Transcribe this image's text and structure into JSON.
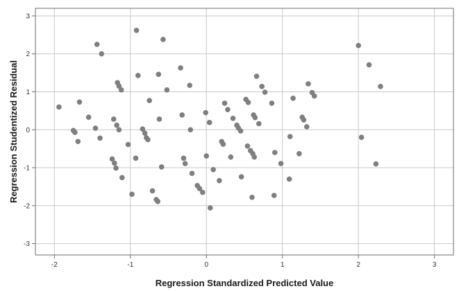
{
  "chart_data": {
    "type": "scatter",
    "title": "",
    "xlabel": "Regression Standardized Predicted Value",
    "ylabel": "Regression Studentized Residual",
    "xlim": [
      -2.25,
      3.25
    ],
    "ylim": [
      -3.3,
      3.2
    ],
    "xticks": [
      -2,
      -1,
      0,
      1,
      2,
      3
    ],
    "yticks": [
      -3,
      -2,
      -1,
      0,
      1,
      2,
      3
    ],
    "x_tick_labels": [
      "-2",
      "-1",
      "0",
      "1",
      "2",
      "3"
    ],
    "y_tick_labels": [
      "-3",
      "-2",
      "-1",
      "0",
      "1",
      "2",
      "3"
    ],
    "grid": true,
    "point_color": "#7f7f7f",
    "grid_color": "#c8c8c8",
    "points": [
      {
        "x": -1.94,
        "y": 0.6
      },
      {
        "x": -1.75,
        "y": -0.02
      },
      {
        "x": -1.73,
        "y": -0.07
      },
      {
        "x": -1.69,
        "y": -0.31
      },
      {
        "x": -1.67,
        "y": 0.73
      },
      {
        "x": -1.55,
        "y": 0.33
      },
      {
        "x": -1.46,
        "y": 0.04
      },
      {
        "x": -1.44,
        "y": 2.25
      },
      {
        "x": -1.4,
        "y": -0.22
      },
      {
        "x": -1.38,
        "y": 2.0
      },
      {
        "x": -1.24,
        "y": -0.77
      },
      {
        "x": -1.22,
        "y": 0.28
      },
      {
        "x": -1.21,
        "y": -0.88
      },
      {
        "x": -1.19,
        "y": -1.01
      },
      {
        "x": -1.18,
        "y": 0.12
      },
      {
        "x": -1.17,
        "y": 1.24
      },
      {
        "x": -1.15,
        "y": 1.15
      },
      {
        "x": -1.15,
        "y": 0.0
      },
      {
        "x": -1.12,
        "y": 1.05
      },
      {
        "x": -1.11,
        "y": -1.26
      },
      {
        "x": -1.03,
        "y": -0.39
      },
      {
        "x": -0.98,
        "y": -1.7
      },
      {
        "x": -0.93,
        "y": -0.75
      },
      {
        "x": -0.92,
        "y": 2.62
      },
      {
        "x": -0.9,
        "y": 1.43
      },
      {
        "x": -0.84,
        "y": 0.02
      },
      {
        "x": -0.81,
        "y": -0.09
      },
      {
        "x": -0.79,
        "y": -0.21
      },
      {
        "x": -0.77,
        "y": -0.26
      },
      {
        "x": -0.75,
        "y": 0.77
      },
      {
        "x": -0.71,
        "y": -1.61
      },
      {
        "x": -0.66,
        "y": -1.84
      },
      {
        "x": -0.64,
        "y": -1.89
      },
      {
        "x": -0.63,
        "y": 1.46
      },
      {
        "x": -0.62,
        "y": 0.28
      },
      {
        "x": -0.59,
        "y": -0.98
      },
      {
        "x": -0.57,
        "y": 2.38
      },
      {
        "x": -0.52,
        "y": 1.05
      },
      {
        "x": -0.34,
        "y": 1.63
      },
      {
        "x": -0.32,
        "y": 0.39
      },
      {
        "x": -0.3,
        "y": -0.75
      },
      {
        "x": -0.28,
        "y": -0.89
      },
      {
        "x": -0.22,
        "y": 1.17
      },
      {
        "x": -0.21,
        "y": 0.0
      },
      {
        "x": -0.19,
        "y": -1.15
      },
      {
        "x": -0.12,
        "y": -1.47
      },
      {
        "x": -0.09,
        "y": -1.55
      },
      {
        "x": -0.05,
        "y": -1.65
      },
      {
        "x": -0.01,
        "y": 0.45
      },
      {
        "x": 0.0,
        "y": -0.69
      },
      {
        "x": 0.04,
        "y": 0.19
      },
      {
        "x": 0.05,
        "y": -2.06
      },
      {
        "x": 0.09,
        "y": -1.05
      },
      {
        "x": 0.17,
        "y": -1.34
      },
      {
        "x": 0.2,
        "y": -0.31
      },
      {
        "x": 0.22,
        "y": -0.38
      },
      {
        "x": 0.24,
        "y": 0.7
      },
      {
        "x": 0.28,
        "y": 0.53
      },
      {
        "x": 0.32,
        "y": -0.72
      },
      {
        "x": 0.35,
        "y": 0.3
      },
      {
        "x": 0.4,
        "y": 0.12
      },
      {
        "x": 0.42,
        "y": 0.05
      },
      {
        "x": 0.45,
        "y": -0.03
      },
      {
        "x": 0.46,
        "y": -1.24
      },
      {
        "x": 0.52,
        "y": 0.8
      },
      {
        "x": 0.54,
        "y": -0.43
      },
      {
        "x": 0.55,
        "y": 0.72
      },
      {
        "x": 0.58,
        "y": -0.55
      },
      {
        "x": 0.6,
        "y": -1.78
      },
      {
        "x": 0.61,
        "y": -0.63
      },
      {
        "x": 0.62,
        "y": 0.39
      },
      {
        "x": 0.63,
        "y": -0.72
      },
      {
        "x": 0.64,
        "y": 0.32
      },
      {
        "x": 0.66,
        "y": 1.41
      },
      {
        "x": 0.69,
        "y": 0.16
      },
      {
        "x": 0.73,
        "y": 1.14
      },
      {
        "x": 0.77,
        "y": 0.99
      },
      {
        "x": 0.86,
        "y": 0.7
      },
      {
        "x": 0.89,
        "y": -1.73
      },
      {
        "x": 0.9,
        "y": -0.6
      },
      {
        "x": 0.98,
        "y": -0.89
      },
      {
        "x": 1.09,
        "y": -1.3
      },
      {
        "x": 1.1,
        "y": -0.18
      },
      {
        "x": 1.14,
        "y": 0.83
      },
      {
        "x": 1.22,
        "y": -0.63
      },
      {
        "x": 1.26,
        "y": 0.33
      },
      {
        "x": 1.28,
        "y": 0.26
      },
      {
        "x": 1.32,
        "y": 0.08
      },
      {
        "x": 1.34,
        "y": 1.21
      },
      {
        "x": 1.39,
        "y": 0.98
      },
      {
        "x": 1.42,
        "y": 0.89
      },
      {
        "x": 2.0,
        "y": 2.22
      },
      {
        "x": 2.04,
        "y": -0.2
      },
      {
        "x": 2.14,
        "y": 1.71
      },
      {
        "x": 2.23,
        "y": -0.9
      },
      {
        "x": 2.29,
        "y": 1.14
      }
    ]
  }
}
